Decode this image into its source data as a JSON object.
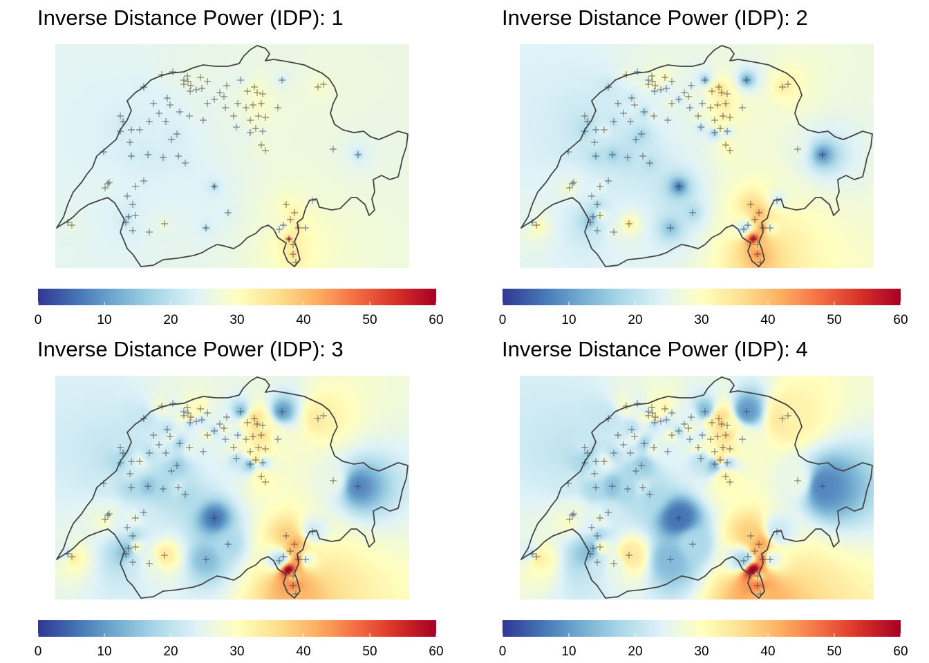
{
  "panels": [
    {
      "title": "Inverse Distance Power (IDP): 1",
      "idp": 1
    },
    {
      "title": "Inverse Distance Power (IDP): 2",
      "idp": 2
    },
    {
      "title": "Inverse Distance Power (IDP): 3",
      "idp": 3
    },
    {
      "title": "Inverse Distance Power (IDP): 4",
      "idp": 4
    }
  ],
  "legend": {
    "ticks": [
      "0",
      "10",
      "20",
      "30",
      "40",
      "50",
      "60"
    ],
    "min": 0,
    "max": 60,
    "colors": [
      "#313695",
      "#4575b4",
      "#74add1",
      "#abd9e9",
      "#e0f3f8",
      "#ffffbf",
      "#fee090",
      "#fdae61",
      "#f46d43",
      "#d73027",
      "#a50026"
    ]
  },
  "colors": {
    "border": "#444444",
    "station_marker": "#333333"
  },
  "icons": [
    "station-marker-icon"
  ]
}
